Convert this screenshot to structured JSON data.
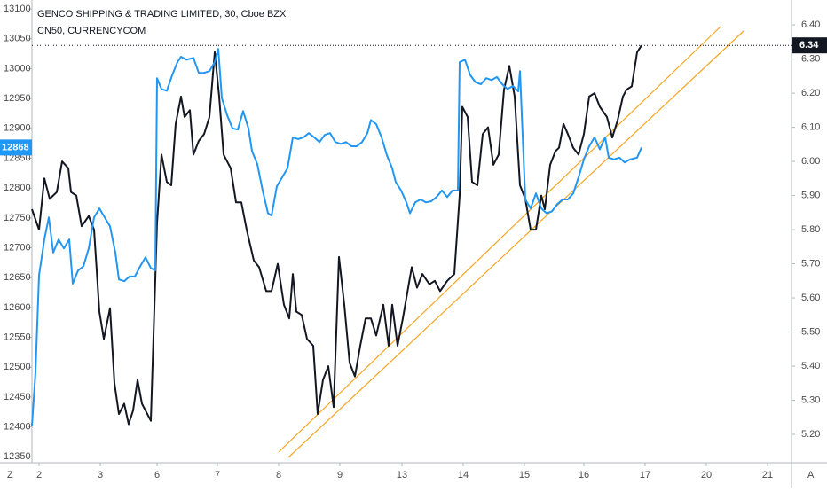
{
  "chart_data": {
    "type": "line",
    "xlim": [
      0,
      856
    ],
    "xticks": [
      {
        "value": 8,
        "label": "2"
      },
      {
        "value": 77,
        "label": "3"
      },
      {
        "value": 141,
        "label": "6"
      },
      {
        "value": 209,
        "label": "7"
      },
      {
        "value": 278,
        "label": "8"
      },
      {
        "value": 347,
        "label": "9"
      },
      {
        "value": 417,
        "label": "13"
      },
      {
        "value": 486,
        "label": "14"
      },
      {
        "value": 555,
        "label": "15"
      },
      {
        "value": 622,
        "label": "16"
      },
      {
        "value": 691,
        "label": "17"
      },
      {
        "value": 760,
        "label": "20"
      },
      {
        "value": 829,
        "label": "21"
      }
    ],
    "ylim": [
      5.117,
      6.473
    ],
    "yticks": [
      {
        "value": 5.2,
        "label": "5.20"
      },
      {
        "value": 5.3,
        "label": "5.30"
      },
      {
        "value": 5.4,
        "label": "5.40"
      },
      {
        "value": 5.5,
        "label": "5.50"
      },
      {
        "value": 5.6,
        "label": "5.60"
      },
      {
        "value": 5.7,
        "label": "5.70"
      },
      {
        "value": 5.8,
        "label": "5.80"
      },
      {
        "value": 5.9,
        "label": "5.90"
      },
      {
        "value": 6.0,
        "label": "6.00"
      },
      {
        "value": 6.1,
        "label": "6.10"
      },
      {
        "value": 6.2,
        "label": "6.20"
      },
      {
        "value": 6.3,
        "label": "6.30"
      },
      {
        "value": 6.4,
        "label": "6.40"
      }
    ],
    "y2lim": [
      12340,
      13115
    ],
    "y2ticks": [
      12350,
      12400,
      12450,
      12500,
      12550,
      12600,
      12650,
      12700,
      12750,
      12800,
      12850,
      12900,
      12950,
      13000,
      13050,
      13100
    ],
    "grid": false,
    "scale_buttons": [
      "Z",
      "A"
    ],
    "series": [
      {
        "name": "GENCO SHIPPING & TRADING LIMITED, 30, Cboe BZX",
        "color": "#131722",
        "x": [
          0,
          8,
          14,
          20,
          28,
          34,
          41,
          44,
          50,
          56,
          64,
          70,
          76,
          81,
          88,
          93,
          98,
          104,
          109,
          114,
          119,
          124,
          134,
          141,
          146,
          152,
          157,
          162,
          168,
          172,
          178,
          182,
          188,
          194,
          200,
          206,
          211,
          216,
          224,
          230,
          236,
          242,
          250,
          256,
          264,
          270,
          277,
          284,
          290,
          294,
          298,
          304,
          310,
          317,
          322,
          328,
          334,
          340,
          346,
          352,
          358,
          364,
          370,
          376,
          382,
          388,
          396,
          402,
          406,
          412,
          418,
          424,
          428,
          434,
          440,
          448,
          454,
          460,
          468,
          476,
          482,
          485,
          491,
          496,
          502,
          508,
          514,
          520,
          526,
          532,
          538,
          544,
          550,
          556,
          562,
          568,
          574,
          578,
          584,
          590,
          594,
          599,
          604,
          610,
          616,
          622,
          628,
          634,
          640,
          648,
          654,
          660,
          666,
          670,
          676,
          682,
          687
        ],
        "values": [
          5.86,
          5.8,
          5.95,
          5.89,
          5.91,
          6.0,
          5.98,
          5.91,
          5.9,
          5.81,
          5.84,
          5.8,
          5.56,
          5.48,
          5.57,
          5.35,
          5.26,
          5.29,
          5.23,
          5.27,
          5.36,
          5.29,
          5.24,
          5.82,
          6.02,
          5.94,
          5.93,
          6.11,
          6.19,
          6.13,
          6.15,
          6.02,
          6.06,
          6.08,
          6.13,
          6.32,
          6.19,
          6.02,
          5.98,
          5.88,
          5.88,
          5.8,
          5.71,
          5.69,
          5.62,
          5.62,
          5.7,
          5.58,
          5.54,
          5.67,
          5.56,
          5.55,
          5.48,
          5.46,
          5.26,
          5.36,
          5.4,
          5.28,
          5.72,
          5.58,
          5.41,
          5.37,
          5.46,
          5.54,
          5.54,
          5.49,
          5.58,
          5.46,
          5.58,
          5.46,
          5.54,
          5.63,
          5.69,
          5.63,
          5.67,
          5.64,
          5.65,
          5.62,
          5.65,
          5.67,
          5.9,
          6.16,
          6.13,
          5.94,
          5.93,
          6.08,
          6.1,
          5.99,
          6.02,
          6.21,
          6.28,
          6.19,
          5.93,
          5.89,
          5.8,
          5.8,
          5.9,
          5.86,
          5.99,
          6.03,
          6.04,
          6.11,
          6.08,
          6.04,
          6.02,
          6.08,
          6.19,
          6.2,
          6.16,
          6.13,
          6.07,
          6.12,
          6.19,
          6.21,
          6.22,
          6.32,
          6.34
        ]
      },
      {
        "name": "CN50, CURRENCYCOM",
        "color": "#2196f3",
        "axis": "y2",
        "x": [
          0,
          4,
          8,
          14,
          19,
          24,
          30,
          36,
          42,
          46,
          52,
          58,
          64,
          70,
          76,
          82,
          88,
          94,
          98,
          104,
          110,
          116,
          122,
          128,
          134,
          139,
          141,
          146,
          152,
          158,
          164,
          168,
          174,
          182,
          188,
          194,
          200,
          206,
          210,
          214,
          220,
          226,
          232,
          238,
          244,
          248,
          254,
          260,
          266,
          270,
          276,
          282,
          288,
          294,
          300,
          306,
          312,
          318,
          324,
          330,
          336,
          342,
          348,
          354,
          360,
          366,
          372,
          378,
          382,
          388,
          394,
          400,
          406,
          410,
          416,
          422,
          426,
          432,
          438,
          444,
          450,
          456,
          462,
          468,
          474,
          480,
          482,
          488,
          494,
          500,
          506,
          512,
          518,
          524,
          530,
          536,
          542,
          548,
          550,
          556,
          562,
          568,
          574,
          580,
          586,
          592,
          598,
          604,
          610,
          616,
          622,
          628,
          634,
          640,
          646,
          650,
          656,
          662,
          668,
          674,
          682,
          687
        ],
        "values": [
          12402,
          12491,
          12654,
          12714,
          12751,
          12692,
          12714,
          12699,
          12714,
          12640,
          12662,
          12669,
          12699,
          12751,
          12766,
          12751,
          12736,
          12692,
          12647,
          12644,
          12652,
          12652,
          12669,
          12684,
          12666,
          12662,
          12984,
          12966,
          12963,
          12989,
          13011,
          13020,
          13015,
          13018,
          12993,
          12993,
          12996,
          13011,
          13033,
          12951,
          12922,
          12900,
          12898,
          12929,
          12900,
          12862,
          12840,
          12796,
          12758,
          12754,
          12803,
          12818,
          12833,
          12885,
          12882,
          12885,
          12892,
          12885,
          12877,
          12889,
          12892,
          12877,
          12874,
          12877,
          12870,
          12870,
          12877,
          12892,
          12914,
          12907,
          12885,
          12855,
          12833,
          12810,
          12796,
          12776,
          12758,
          12776,
          12781,
          12776,
          12778,
          12785,
          12796,
          12785,
          12796,
          12796,
          13011,
          13015,
          12989,
          12977,
          12974,
          12984,
          12981,
          12986,
          12974,
          12966,
          12971,
          12962,
          12996,
          12781,
          12766,
          12791,
          12766,
          12758,
          12761,
          12773,
          12781,
          12781,
          12791,
          12818,
          12848,
          12870,
          12885,
          12865,
          12885,
          12851,
          12848,
          12851,
          12843,
          12848,
          12851,
          12868
        ]
      }
    ]
  }
}
